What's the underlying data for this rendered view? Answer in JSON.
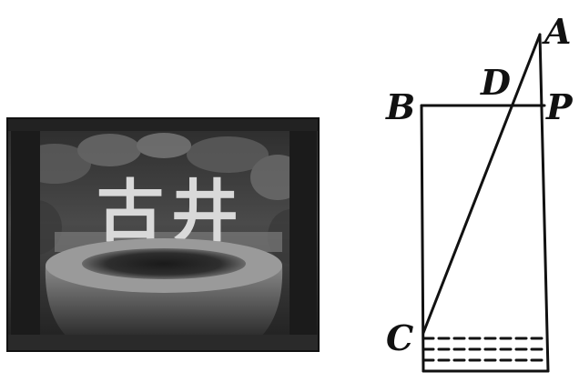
{
  "photo": {
    "sign_text": [
      "古",
      "井"
    ]
  },
  "diagram": {
    "points": {
      "A": "A",
      "B": "B",
      "C": "C",
      "D": "D",
      "P": "P"
    }
  }
}
